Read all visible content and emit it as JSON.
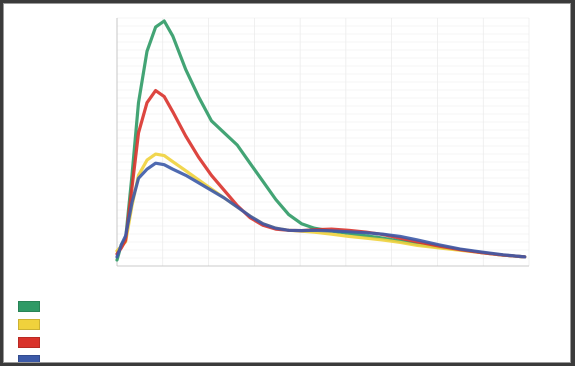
{
  "window": {
    "background": "#ffffff",
    "frame": "#3b3b3b"
  },
  "chart_data": {
    "type": "line",
    "title": "",
    "xlabel": "",
    "ylabel": "",
    "ylabel_right": "",
    "corner_note": "",
    "x_ticks": [
      "",
      "",
      "",
      "",
      "",
      "",
      "",
      "",
      "",
      ""
    ],
    "y_ticks": [
      "",
      "",
      "",
      "",
      "",
      "",
      "",
      "",
      "",
      "",
      "",
      "",
      "",
      "",
      "",
      "",
      "",
      "",
      "",
      "",
      "",
      "",
      "",
      "",
      "",
      "",
      "",
      "",
      "",
      "",
      "",
      ""
    ],
    "grid": true,
    "legend_position": "bottom-left",
    "xlim": [
      0,
      9.6
    ],
    "ylim": [
      -0.2,
      8.0
    ],
    "x": [
      0,
      0.1,
      0.2,
      0.35,
      0.5,
      0.7,
      0.9,
      1.1,
      1.3,
      1.6,
      1.9,
      2.2,
      2.5,
      2.8,
      3.1,
      3.4,
      3.7,
      4.0,
      4.3,
      4.6,
      5.0,
      5.4,
      5.8,
      6.2,
      6.6,
      7.0,
      7.5,
      8.0,
      8.5,
      9.0,
      9.5
    ],
    "series": [
      {
        "name": "",
        "color": "#2f9a66",
        "values": [
          0.0,
          0.5,
          0.7,
          2.8,
          5.2,
          6.9,
          7.7,
          7.9,
          7.4,
          6.3,
          5.4,
          4.6,
          4.2,
          3.8,
          3.2,
          2.6,
          2.0,
          1.5,
          1.2,
          1.05,
          0.95,
          0.88,
          0.8,
          0.72,
          0.62,
          0.52,
          0.42,
          0.34,
          0.24,
          0.16,
          0.1
        ]
      },
      {
        "name": "",
        "color": "#f0d23c",
        "values": [
          0.3,
          0.45,
          0.6,
          1.8,
          2.8,
          3.3,
          3.5,
          3.45,
          3.25,
          2.95,
          2.65,
          2.35,
          2.05,
          1.75,
          1.45,
          1.2,
          1.05,
          0.98,
          0.95,
          0.92,
          0.85,
          0.78,
          0.72,
          0.66,
          0.58,
          0.48,
          0.4,
          0.32,
          0.24,
          0.16,
          0.1
        ]
      },
      {
        "name": "",
        "color": "#d9322b",
        "values": [
          0.2,
          0.4,
          0.65,
          2.4,
          4.2,
          5.2,
          5.6,
          5.4,
          4.9,
          4.1,
          3.4,
          2.8,
          2.3,
          1.8,
          1.4,
          1.15,
          1.02,
          0.98,
          0.97,
          1.0,
          1.02,
          0.98,
          0.92,
          0.84,
          0.72,
          0.6,
          0.46,
          0.34,
          0.24,
          0.16,
          0.1
        ]
      },
      {
        "name": "",
        "color": "#3c5aa8",
        "values": [
          0.1,
          0.5,
          0.8,
          1.9,
          2.7,
          3.0,
          3.2,
          3.15,
          3.0,
          2.8,
          2.55,
          2.3,
          2.05,
          1.75,
          1.45,
          1.2,
          1.05,
          0.98,
          0.97,
          0.98,
          0.96,
          0.93,
          0.9,
          0.85,
          0.78,
          0.66,
          0.5,
          0.36,
          0.26,
          0.17,
          0.1
        ]
      }
    ]
  }
}
